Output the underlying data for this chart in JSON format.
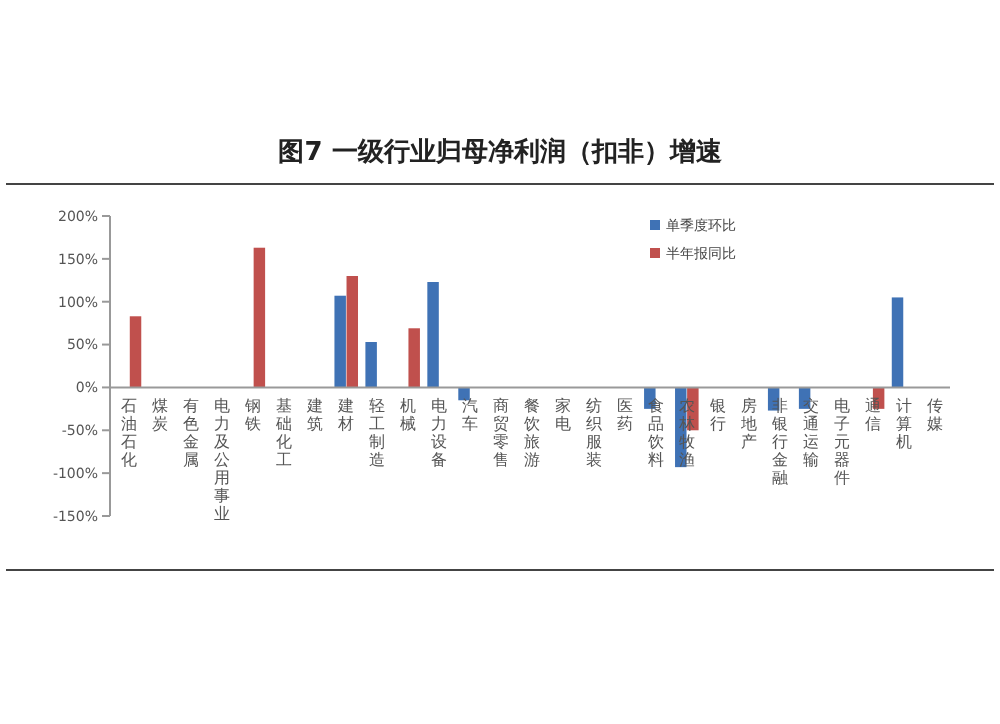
{
  "chart_data": {
    "type": "bar",
    "title": "图7 一级行业归母净利润（扣非）增速",
    "categories": [
      "石油石化",
      "煤炭",
      "有色金属",
      "电力及公用事业",
      "钢铁",
      "基础化工",
      "建筑",
      "建材",
      "轻工制造",
      "机械",
      "电力设备",
      "汽车",
      "商贸零售",
      "餐饮旅游",
      "家电",
      "纺织服装",
      "医药",
      "食品饮料",
      "农林牧渔",
      "银行",
      "房地产",
      "非银行金融",
      "交通运输",
      "电子元器件",
      "通信",
      "计算机",
      "传媒"
    ],
    "series": [
      {
        "name": "单季度环比",
        "color": "#3f72b5",
        "values": [
          null,
          null,
          null,
          null,
          null,
          null,
          null,
          107,
          53,
          null,
          123,
          -15,
          null,
          null,
          null,
          null,
          null,
          -25,
          -93,
          null,
          null,
          -27,
          -25,
          null,
          null,
          105,
          null
        ]
      },
      {
        "name": "半年报同比",
        "color": "#c0504d",
        "values": [
          83,
          null,
          null,
          null,
          163,
          null,
          null,
          130,
          null,
          69,
          null,
          null,
          null,
          null,
          null,
          null,
          null,
          null,
          -50,
          null,
          null,
          null,
          null,
          null,
          -25,
          null,
          null
        ]
      }
    ],
    "ylim": [
      -150,
      200
    ],
    "yticks": [
      {
        "value": -150,
        "label": "-150%"
      },
      {
        "value": -100,
        "label": "-100%"
      },
      {
        "value": -50,
        "label": "-50%"
      },
      {
        "value": 0,
        "label": "0%"
      },
      {
        "value": 50,
        "label": "50%"
      },
      {
        "value": 100,
        "label": "100%"
      },
      {
        "value": 150,
        "label": "150%"
      },
      {
        "value": 200,
        "label": "200%"
      }
    ],
    "grid": false,
    "legend": "top right"
  }
}
